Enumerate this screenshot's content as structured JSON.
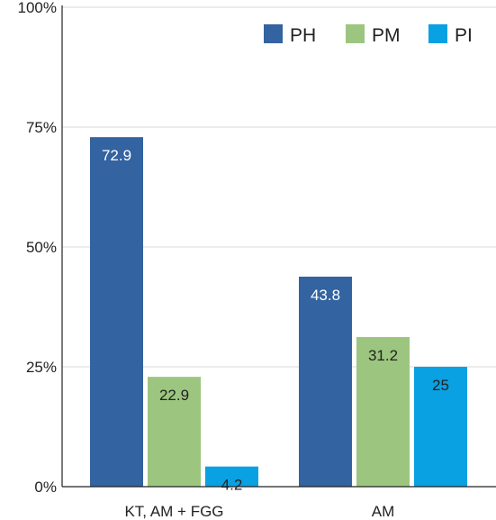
{
  "chart_data": {
    "type": "bar",
    "categories": [
      "KT, AM + FGG",
      "AM"
    ],
    "series": [
      {
        "name": "PH",
        "values": [
          72.9,
          43.8
        ],
        "color": "#3363a0",
        "label_color": "#ffffff"
      },
      {
        "name": "PM",
        "values": [
          22.9,
          31.2
        ],
        "color": "#9cc67f",
        "label_color": "#222222"
      },
      {
        "name": "PI",
        "values": [
          4.2,
          25
        ],
        "color": "#0aa1e2",
        "label_color": "#222222"
      }
    ],
    "data_labels": [
      [
        "72.9",
        "43.8"
      ],
      [
        "22.9",
        "31.2"
      ],
      [
        "4.2",
        "25"
      ]
    ],
    "y_ticks": [
      0,
      25,
      50,
      75,
      100
    ],
    "y_tick_labels": [
      "0%",
      "25%",
      "50%",
      "75%",
      "100%"
    ],
    "ylim": [
      0,
      100
    ],
    "title": "",
    "xlabel": "",
    "ylabel": "",
    "grid": true,
    "legend_position": "top-right",
    "gridline_color": "#d9d9d9",
    "axis_color": "#222222"
  }
}
